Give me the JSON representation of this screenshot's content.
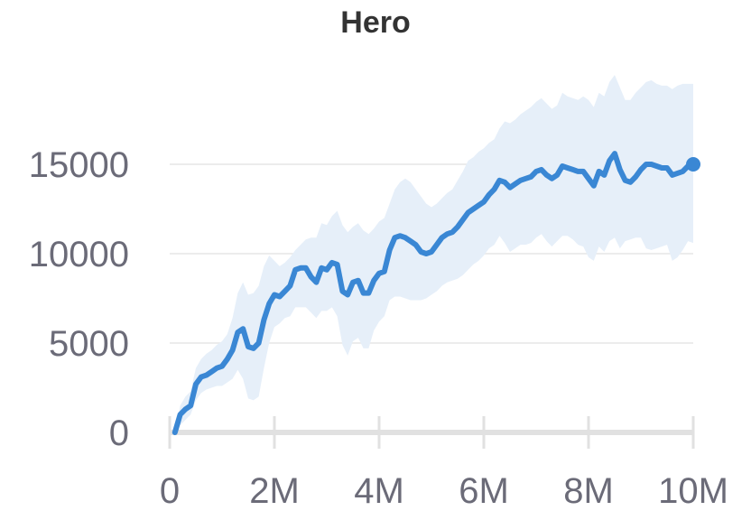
{
  "chart_data": {
    "type": "line",
    "title": "Hero",
    "xlabel": "",
    "ylabel": "",
    "xlim": [
      0,
      10000000
    ],
    "ylim": [
      0,
      15500
    ],
    "grid": true,
    "y_ticks": [
      0,
      5000,
      10000,
      15000
    ],
    "y_tick_labels": [
      "0",
      "5000",
      "10000",
      "15000"
    ],
    "x_ticks": [
      0,
      2000000,
      4000000,
      6000000,
      8000000,
      10000000
    ],
    "x_tick_labels": [
      "0",
      "2M",
      "4M",
      "6M",
      "8M",
      "10M"
    ],
    "colors": {
      "line": "#3a87d4",
      "band": "#e6eff9",
      "grid": "#e6e6e6",
      "baseline": "#e1e1e1"
    },
    "series": [
      {
        "x": [
          100000,
          200000,
          300000,
          400000,
          500000,
          600000,
          700000,
          800000,
          900000,
          1000000,
          1100000,
          1200000,
          1300000,
          1400000,
          1500000,
          1600000,
          1700000,
          1800000,
          1900000,
          2000000,
          2100000,
          2200000,
          2300000,
          2400000,
          2500000,
          2600000,
          2700000,
          2800000,
          2900000,
          3000000,
          3100000,
          3200000,
          3300000,
          3400000,
          3500000,
          3600000,
          3700000,
          3800000,
          3900000,
          4000000,
          4100000,
          4200000,
          4300000,
          4400000,
          4500000,
          4600000,
          4700000,
          4800000,
          4900000,
          5000000,
          5100000,
          5200000,
          5300000,
          5400000,
          5500000,
          5600000,
          5700000,
          5800000,
          5900000,
          6000000,
          6100000,
          6200000,
          6300000,
          6400000,
          6500000,
          6600000,
          6700000,
          6800000,
          6900000,
          7000000,
          7100000,
          7200000,
          7300000,
          7400000,
          7500000,
          7600000,
          7700000,
          7800000,
          7900000,
          8000000,
          8100000,
          8200000,
          8300000,
          8400000,
          8500000,
          8600000,
          8700000,
          8800000,
          8900000,
          9000000,
          9100000,
          9200000,
          9300000,
          9400000,
          9500000,
          9600000,
          9700000,
          9800000,
          9900000,
          10000000
        ],
        "y": [
          0,
          1000,
          1300,
          1500,
          2700,
          3100,
          3200,
          3400,
          3600,
          3700,
          4100,
          4600,
          5600,
          5800,
          4800,
          4700,
          5000,
          6300,
          7200,
          7700,
          7600,
          7900,
          8200,
          9100,
          9200,
          9200,
          8700,
          8400,
          9200,
          9100,
          9500,
          9400,
          7900,
          7700,
          8400,
          8500,
          7800,
          7800,
          8500,
          8900,
          9000,
          10200,
          10900,
          11000,
          10900,
          10700,
          10500,
          10100,
          10000,
          10100,
          10500,
          10900,
          11100,
          11200,
          11500,
          11900,
          12300,
          12500,
          12700,
          12900,
          13300,
          13600,
          14100,
          14000,
          13700,
          13900,
          14100,
          14200,
          14300,
          14600,
          14700,
          14400,
          14200,
          14400,
          14900,
          14800,
          14700,
          14600,
          14600,
          14200,
          13800,
          14600,
          14400,
          15200,
          15600,
          14700,
          14100,
          14000,
          14300,
          14700,
          15000,
          15000,
          14900,
          14800,
          14800,
          14400,
          14500,
          14600,
          14900,
          15000
        ],
        "lower": [
          0,
          400,
          700,
          1000,
          1800,
          2200,
          2400,
          2500,
          2600,
          2600,
          2800,
          3000,
          3500,
          3000,
          1900,
          1800,
          2000,
          3600,
          5000,
          5900,
          6100,
          6400,
          6500,
          7000,
          7000,
          7000,
          6700,
          6400,
          6800,
          6800,
          7000,
          6500,
          4900,
          4300,
          5100,
          5300,
          4700,
          4700,
          5700,
          6200,
          6500,
          7400,
          7600,
          7600,
          7500,
          7400,
          7400,
          7400,
          7500,
          7700,
          7900,
          8200,
          8400,
          8500,
          8600,
          8800,
          9100,
          9400,
          9600,
          9900,
          10300,
          10500,
          11000,
          10600,
          10100,
          10300,
          10500,
          10500,
          10600,
          10900,
          11100,
          10700,
          10400,
          10700,
          11000,
          11000,
          10800,
          10500,
          10400,
          9800,
          9600,
          10400,
          10100,
          10700,
          10900,
          10300,
          10700,
          10800,
          10900,
          10900,
          10300,
          10200,
          10300,
          10400,
          10500,
          9600,
          9800,
          10200,
          10700,
          10600
        ],
        "upper": [
          0,
          1500,
          2000,
          2300,
          3600,
          4100,
          4400,
          4600,
          4900,
          5100,
          5500,
          6400,
          7800,
          8400,
          7700,
          7800,
          8200,
          9300,
          9900,
          9600,
          9300,
          9500,
          9800,
          10200,
          10500,
          10800,
          10900,
          10900,
          11700,
          11600,
          12100,
          12400,
          11600,
          11200,
          11500,
          11700,
          11300,
          11100,
          11400,
          11800,
          12000,
          12800,
          13600,
          14000,
          14200,
          14000,
          13600,
          13200,
          12800,
          12600,
          12800,
          13100,
          13400,
          13600,
          14100,
          14600,
          15200,
          15400,
          15700,
          15900,
          16200,
          16400,
          17000,
          17400,
          17300,
          17500,
          17800,
          18000,
          18200,
          18500,
          18700,
          18400,
          18100,
          18300,
          19000,
          18800,
          18700,
          18600,
          18800,
          18600,
          18200,
          19000,
          18800,
          19600,
          20000,
          19300,
          18600,
          18600,
          19000,
          19300,
          19600,
          19700,
          19500,
          19400,
          19400,
          19200,
          19400,
          19500,
          19500,
          19500
        ]
      }
    ]
  }
}
